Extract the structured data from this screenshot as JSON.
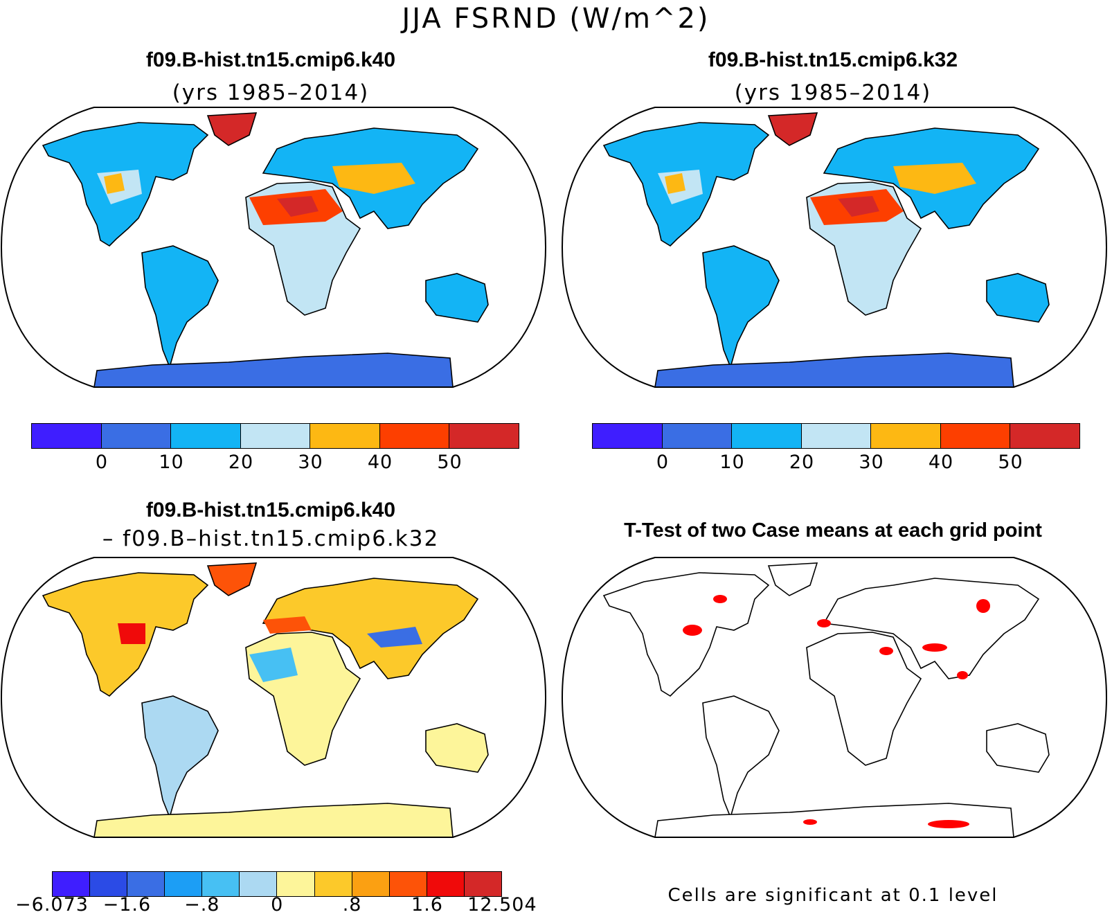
{
  "figure": {
    "title": "JJA FSRND (W/m^2)"
  },
  "panels": [
    {
      "id": "k40",
      "title": "f09.B-hist.tn15.cmip6.k40",
      "subtitle": "(yrs 1985–2014)",
      "colorbar": {
        "colors": [
          "#3f1eff",
          "#3a6ee4",
          "#13b4f5",
          "#c2e5f4",
          "#fdb813",
          "#fd3f00",
          "#d42828"
        ],
        "tick_labels": [
          "0",
          "10",
          "20",
          "30",
          "40",
          "50"
        ]
      }
    },
    {
      "id": "k32",
      "title": "f09.B-hist.tn15.cmip6.k32",
      "subtitle": "(yrs 1985–2014)",
      "colorbar": {
        "colors": [
          "#3f1eff",
          "#3a6ee4",
          "#13b4f5",
          "#c2e5f4",
          "#fdb813",
          "#fd3f00",
          "#d42828"
        ],
        "tick_labels": [
          "0",
          "10",
          "20",
          "30",
          "40",
          "50"
        ]
      }
    },
    {
      "id": "diff",
      "title": "f09.B-hist.tn15.cmip6.k40",
      "subtitle": "– f09.B–hist.tn15.cmip6.k32",
      "colorbar": {
        "colors": [
          "#3f1eff",
          "#2b4be6",
          "#3a6ee4",
          "#1c9ef5",
          "#47c0f3",
          "#acd9f2",
          "#fdf59a",
          "#fcc92a",
          "#fba012",
          "#fd5308",
          "#f00a0a",
          "#d42828"
        ],
        "tick_labels": [
          "−6.073",
          "−1.6",
          "−.8",
          "0",
          ".8",
          "1.6",
          "12.504"
        ]
      }
    },
    {
      "id": "ttest",
      "title": "T-Test of two Case means at each grid point",
      "note": "Cells are significant at 0.1 level",
      "significant_color": "#ff0000"
    }
  ]
}
